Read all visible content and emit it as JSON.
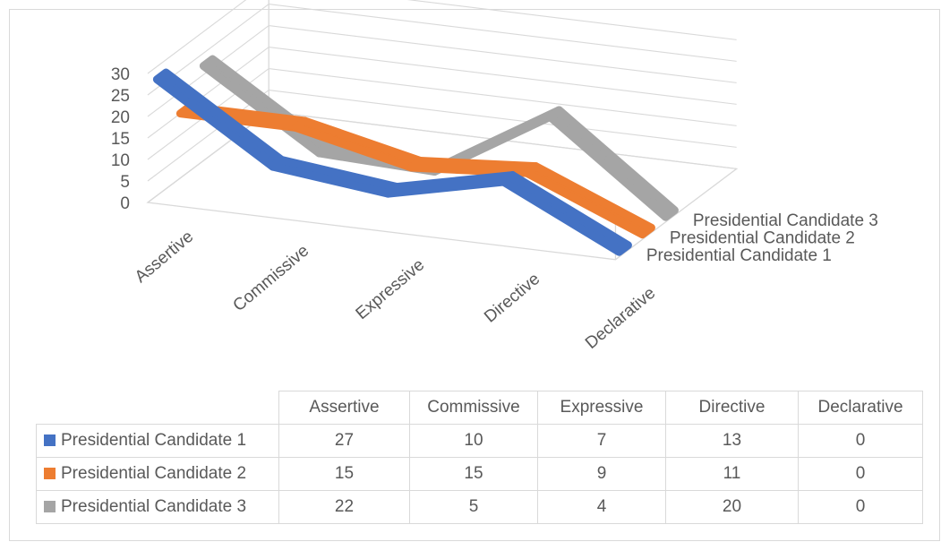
{
  "chart_data": {
    "type": "line",
    "subtype": "3d-line",
    "categories": [
      "Assertive",
      "Commissive",
      "Expressive",
      "Directive",
      "Declarative"
    ],
    "series": [
      {
        "name": "Presidential Candidate 1",
        "values": [
          27,
          10,
          7,
          13,
          0
        ],
        "color": "#4472c4"
      },
      {
        "name": "Presidential Candidate 2",
        "values": [
          15,
          15,
          9,
          11,
          0
        ],
        "color": "#ed7d31"
      },
      {
        "name": "Presidential Candidate 3",
        "values": [
          22,
          5,
          4,
          20,
          0
        ],
        "color": "#a5a5a5"
      }
    ],
    "y_ticks": [
      "0",
      "5",
      "10",
      "15",
      "20",
      "25",
      "30"
    ],
    "ylim": [
      0,
      30
    ],
    "grid": true,
    "legend": "data-table-below",
    "title": "",
    "xlabel": "",
    "ylabel": ""
  },
  "table": {
    "headers": [
      "Assertive",
      "Commissive",
      "Expressive",
      "Directive",
      "Declarative"
    ],
    "rows": [
      {
        "label": "Presidential Candidate 1",
        "values": [
          "27",
          "10",
          "7",
          "13",
          "0"
        ],
        "color": "#4472c4"
      },
      {
        "label": "Presidential Candidate 2",
        "values": [
          "15",
          "15",
          "9",
          "11",
          "0"
        ],
        "color": "#ed7d31"
      },
      {
        "label": "Presidential Candidate 3",
        "values": [
          "22",
          "5",
          "4",
          "20",
          "0"
        ],
        "color": "#a5a5a5"
      }
    ]
  }
}
